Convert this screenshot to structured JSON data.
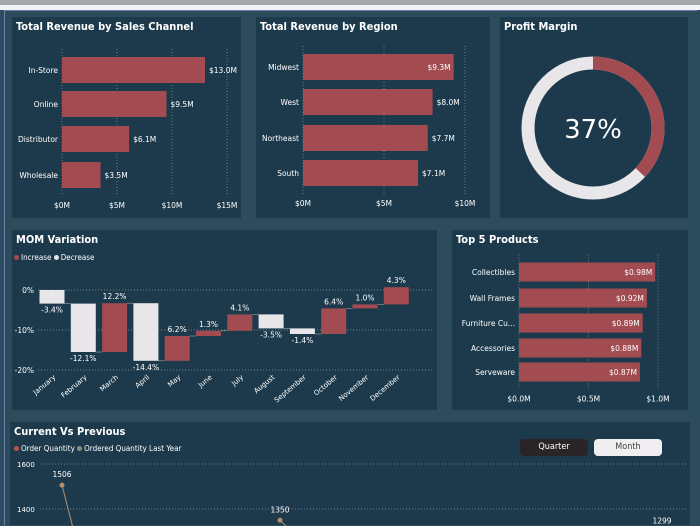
{
  "colors": {
    "bar": "#a24c52",
    "decrease": "#e8e6e8",
    "panel": "#1c3a4b",
    "background": "#2c4b5b",
    "line_last_year": "#b58f6e"
  },
  "chart_data": [
    {
      "type": "bar",
      "orientation": "horizontal",
      "title": "Total Revenue by Sales Channel",
      "categories": [
        "In-Store",
        "Online",
        "Distributor",
        "Wholesale"
      ],
      "values": [
        13.0,
        9.5,
        6.1,
        3.5
      ],
      "data_labels": [
        "$13.0M",
        "$9.5M",
        "$6.1M",
        "$3.5M"
      ],
      "xlim": [
        0,
        15
      ],
      "x_ticks": [
        0,
        5,
        10,
        15
      ],
      "x_tick_labels": [
        "$0M",
        "$5M",
        "$10M",
        "$15M"
      ],
      "grid": true
    },
    {
      "type": "bar",
      "orientation": "horizontal",
      "title": "Total Revenue by Region",
      "categories": [
        "Midwest",
        "West",
        "Northeast",
        "South"
      ],
      "values": [
        9.3,
        8.0,
        7.7,
        7.1
      ],
      "data_labels": [
        "$9.3M",
        "$8.0M",
        "$7.7M",
        "$7.1M"
      ],
      "xlim": [
        0,
        10
      ],
      "x_ticks": [
        0,
        5,
        10
      ],
      "x_tick_labels": [
        "$0M",
        "$5M",
        "$10M"
      ],
      "grid": true
    },
    {
      "type": "pie",
      "subtype": "donut",
      "title": "Profit Margin",
      "value": 37,
      "center_label": "37%"
    },
    {
      "type": "bar",
      "subtype": "waterfall",
      "title": "MOM Variation",
      "legend": [
        "Increase",
        "Decrease"
      ],
      "legend_position": "top-left",
      "categories": [
        "January",
        "February",
        "March",
        "April",
        "May",
        "June",
        "July",
        "August",
        "September",
        "October",
        "November",
        "December"
      ],
      "values": [
        -3.4,
        -12.1,
        12.2,
        -14.4,
        6.2,
        1.3,
        4.1,
        -3.5,
        -1.4,
        6.4,
        1.0,
        4.3
      ],
      "data_labels": [
        "-3.4%",
        "-12.1%",
        "12.2%",
        "-14.4%",
        "6.2%",
        "1.3%",
        "4.1%",
        "-3.5%",
        "-1.4%",
        "6.4%",
        "1.0%",
        "4.3%"
      ],
      "ylim": [
        -20,
        2
      ],
      "y_ticks": [
        0,
        -10,
        -20
      ],
      "y_tick_labels": [
        "0%",
        "-10%",
        "-20%"
      ],
      "grid": true
    },
    {
      "type": "bar",
      "orientation": "horizontal",
      "title": "Top 5 Products",
      "categories": [
        "Collectibles",
        "Wall Frames",
        "Furniture Cu...",
        "Accessories",
        "Serveware"
      ],
      "values": [
        0.98,
        0.92,
        0.89,
        0.88,
        0.87
      ],
      "data_labels": [
        "$0.98M",
        "$0.92M",
        "$0.89M",
        "$0.88M",
        "$0.87M"
      ],
      "xlim": [
        0,
        1.0
      ],
      "x_ticks": [
        0,
        0.5,
        1.0
      ],
      "x_tick_labels": [
        "$0.0M",
        "$0.5M",
        "$1.0M"
      ],
      "grid": true
    },
    {
      "type": "line",
      "title": "Current Vs Previous",
      "legend": [
        "Order Quantity",
        "Ordered Quantity Last Year"
      ],
      "legend_position": "top-left",
      "y_ticks": [
        1600,
        1400
      ],
      "y_tick_labels": [
        "1600",
        "1400"
      ],
      "grid": true,
      "series": [
        {
          "name": "Ordered Quantity Last Year",
          "visible_points": [
            {
              "index": 0,
              "value": 1506,
              "label": "1506"
            },
            {
              "index": 1,
              "value": 1350,
              "label": "1350"
            },
            {
              "index": 3,
              "value": 1299,
              "label": "1299"
            }
          ]
        }
      ],
      "toggle": {
        "options": [
          "Quarter",
          "Month"
        ],
        "selected": "Quarter"
      }
    }
  ]
}
